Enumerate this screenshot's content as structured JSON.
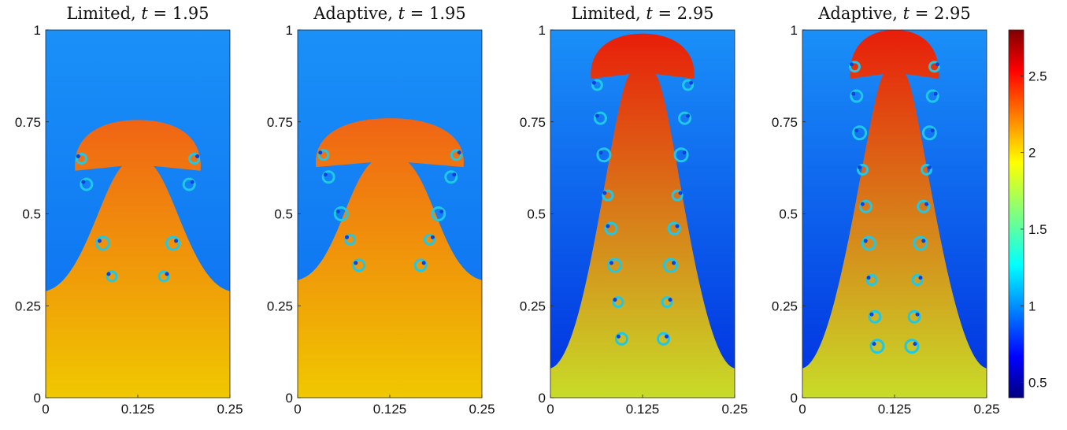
{
  "chart_data": {
    "type": "heatmap",
    "panels": [
      {
        "title_prefix": "Limited, ",
        "title_var": "t",
        "title_rest": " = 1.95",
        "scheme": "Limited",
        "time": 1.95,
        "xlim": [
          0,
          0.25
        ],
        "ylim": [
          0,
          1
        ],
        "xticks": [
          "0",
          "0.125",
          "0.25"
        ],
        "yticks": [
          "0",
          "0.25",
          "0.5",
          "0.75",
          "1"
        ],
        "plume": {
          "cap_top": 0.755,
          "cap_bottom": 0.63,
          "cap_half_width": 0.085,
          "interface_edge": 0.29,
          "vortex_levels": [
            0.65,
            0.58,
            0.42,
            0.33
          ]
        }
      },
      {
        "title_prefix": "Adaptive, ",
        "title_var": "t",
        "title_rest": " = 1.95",
        "scheme": "Adaptive",
        "time": 1.95,
        "xlim": [
          0,
          0.25
        ],
        "ylim": [
          0,
          1
        ],
        "xticks": [
          "0",
          "0.125",
          "0.25"
        ],
        "yticks": [
          "0",
          "0.25",
          "0.5",
          "0.75",
          "1"
        ],
        "plume": {
          "cap_top": 0.76,
          "cap_bottom": 0.64,
          "cap_half_width": 0.1,
          "interface_edge": 0.32,
          "vortex_levels": [
            0.66,
            0.6,
            0.5,
            0.43,
            0.36
          ]
        }
      },
      {
        "title_prefix": "Limited, ",
        "title_var": "t",
        "title_rest": " = 2.95",
        "scheme": "Limited",
        "time": 2.95,
        "xlim": [
          0,
          0.25
        ],
        "ylim": [
          0,
          1
        ],
        "xticks": [
          "0",
          "0.125",
          "0.25"
        ],
        "yticks": [
          "0",
          "0.25",
          "0.5",
          "0.75",
          "1"
        ],
        "plume": {
          "cap_top": 0.99,
          "cap_bottom": 0.88,
          "cap_half_width": 0.07,
          "interface_edge": 0.08,
          "vortex_levels": [
            0.85,
            0.76,
            0.66,
            0.55,
            0.46,
            0.36,
            0.26,
            0.16
          ]
        }
      },
      {
        "title_prefix": "Adaptive, ",
        "title_var": "t",
        "title_rest": " = 2.95",
        "scheme": "Adaptive",
        "time": 2.95,
        "xlim": [
          0,
          0.25
        ],
        "ylim": [
          0,
          1
        ],
        "xticks": [
          "0",
          "0.125",
          "0.25"
        ],
        "yticks": [
          "0",
          "0.25",
          "0.5",
          "0.75",
          "1"
        ],
        "plume": {
          "cap_top": 1.0,
          "cap_bottom": 0.88,
          "cap_half_width": 0.06,
          "interface_edge": 0.08,
          "vortex_levels": [
            0.9,
            0.82,
            0.72,
            0.62,
            0.52,
            0.42,
            0.32,
            0.22,
            0.14
          ]
        }
      }
    ],
    "colorbar": {
      "range": [
        0.4,
        2.8
      ],
      "ticks": [
        "0.5",
        "1",
        "1.5",
        "2",
        "2.5"
      ],
      "colormap": "jet"
    },
    "colors": {
      "light_fluid": "#0a6cf0",
      "heavy_fluid": "#f0c800",
      "plume_core": "#f06414",
      "vortex": "#1ec8e6"
    }
  }
}
